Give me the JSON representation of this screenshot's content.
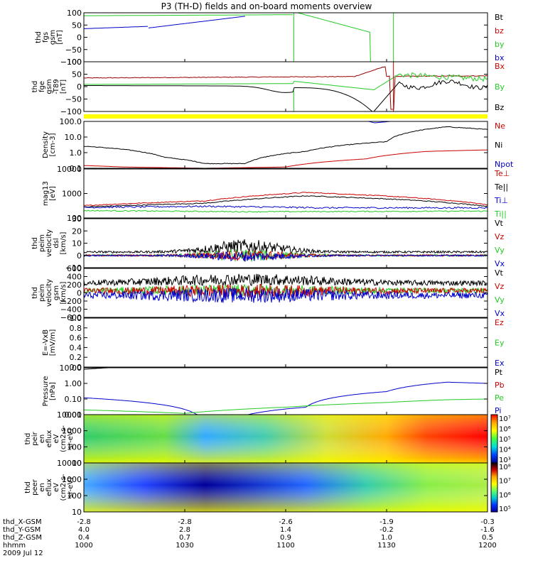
{
  "chart_data": {
    "type": "line",
    "title": "P3 (TH-D) fields and on-board moments overview",
    "x_ticks": [
      "1000",
      "1030",
      "1100",
      "1130",
      "1200"
    ],
    "footer_rows": [
      {
        "label": "thd_X-GSM",
        "values": [
          "-2.8",
          "-2.8",
          "-2.6",
          "-1.9",
          "-0.3"
        ]
      },
      {
        "label": "thd_Y-GSM",
        "values": [
          "4.0",
          "2.8",
          "1.4",
          "-0.2",
          "-1.6"
        ]
      },
      {
        "label": "thd_Z-GSM",
        "values": [
          "0.4",
          "0.7",
          "0.9",
          "1.0",
          "0.5"
        ]
      },
      {
        "label": "hhmm",
        "values": [
          "1000",
          "1030",
          "1100",
          "1130",
          "1200"
        ]
      }
    ],
    "date": "2009 Jul 12",
    "panels": [
      {
        "id": "fgs",
        "ylabel": [
          "thd",
          "fgs",
          "gsm",
          "[nT]"
        ],
        "yticks": [
          "100",
          "50",
          "0",
          "−50",
          "−100"
        ],
        "legend": [
          {
            "t": "Bt",
            "c": "#000000"
          },
          {
            "t": "bz",
            "c": "#cc0000"
          },
          {
            "t": "by",
            "c": "#22cc22"
          },
          {
            "t": "bx",
            "c": "#0000cc"
          }
        ]
      },
      {
        "id": "fge",
        "ylabel": [
          "thd",
          "fge",
          "gsm",
          "-T89",
          "[nT]"
        ],
        "yticks": [
          "100",
          "50",
          "0",
          "−50",
          "−100"
        ],
        "legend": [
          {
            "t": "Bx",
            "c": "#cc0000"
          },
          {
            "t": "By",
            "c": "#22cc22"
          },
          {
            "t": "Bz",
            "c": "#000000"
          }
        ]
      },
      {
        "id": "density",
        "ylabel": [
          "Density",
          "[cm-3]"
        ],
        "yticks": [
          "100.0",
          "10.0",
          "1.0",
          "0.1"
        ],
        "legend": [
          {
            "t": "Ne",
            "c": "#cc0000"
          },
          {
            "t": "Ni",
            "c": "#000000"
          },
          {
            "t": "Npot",
            "c": "#0000cc"
          }
        ]
      },
      {
        "id": "temp",
        "ylabel": [
          "mag13",
          "[eV]"
        ],
        "yticks": [
          "10000",
          "1000",
          "100"
        ],
        "legend": [
          {
            "t": "Te⊥",
            "c": "#cc0000"
          },
          {
            "t": "Te||",
            "c": "#000000"
          },
          {
            "t": "Ti⊥",
            "c": "#0000cc"
          },
          {
            "t": "Ti||",
            "c": "#22cc22"
          }
        ]
      },
      {
        "id": "ve",
        "ylabel": [
          "thd",
          "peim",
          "velocity",
          "dsl",
          "[km/s]"
        ],
        "yticks": [
          "30",
          "20",
          "10",
          "0",
          "−10"
        ],
        "legend": [
          {
            "t": "Vt",
            "c": "#000000"
          },
          {
            "t": "Vz",
            "c": "#cc0000"
          },
          {
            "t": "Vy",
            "c": "#22cc22"
          },
          {
            "t": "Vx",
            "c": "#0000cc"
          }
        ]
      },
      {
        "id": "vi",
        "ylabel": [
          "thd",
          "peim",
          "velocity",
          "gsm",
          "[km/s]"
        ],
        "yticks": [
          "600",
          "400",
          "200",
          "0",
          "−200",
          "−400",
          "−600"
        ],
        "legend": [
          {
            "t": "Vt",
            "c": "#000000"
          },
          {
            "t": "Vz",
            "c": "#cc0000"
          },
          {
            "t": "Vy",
            "c": "#22cc22"
          },
          {
            "t": "Vx",
            "c": "#0000cc"
          }
        ]
      },
      {
        "id": "efield",
        "ylabel": [
          "E=-VxB",
          "[mV/m]"
        ],
        "yticks": [
          "1.0",
          "0.8",
          "0.6",
          "0.4",
          "0.2",
          "0.0"
        ],
        "legend": [
          {
            "t": "Ez",
            "c": "#cc0000"
          },
          {
            "t": "Ey",
            "c": "#22cc22"
          },
          {
            "t": "Ex",
            "c": "#0000cc"
          }
        ]
      },
      {
        "id": "pressure",
        "ylabel": [
          "Pressure",
          "[nPa]"
        ],
        "yticks": [
          "10.00",
          "1.00",
          "0.10",
          "0.01"
        ],
        "legend": [
          {
            "t": "Pt",
            "c": "#000000"
          },
          {
            "t": "Pb",
            "c": "#cc0000"
          },
          {
            "t": "Pe",
            "c": "#22cc22"
          },
          {
            "t": "Pi",
            "c": "#0000cc"
          }
        ]
      },
      {
        "id": "peir",
        "ylabel": [
          "thd",
          "peir",
          "en",
          "eflux",
          "eV",
          "(cm2-s-",
          "sr-eV)"
        ],
        "yticks": [
          "10000",
          "1000",
          "100",
          "10"
        ],
        "colorbar": [
          "10⁷",
          "10⁶",
          "10⁵",
          "10⁴",
          "10³"
        ]
      },
      {
        "id": "peer",
        "ylabel": [
          "thd",
          "peer",
          "en",
          "eflux",
          "eV",
          "(cm2-s-",
          "sr-eV)"
        ],
        "yticks": [
          "10000",
          "1000",
          "100",
          "10"
        ],
        "colorbar": [
          "10⁸",
          "10⁷",
          "10⁶",
          "10⁵"
        ]
      }
    ]
  }
}
